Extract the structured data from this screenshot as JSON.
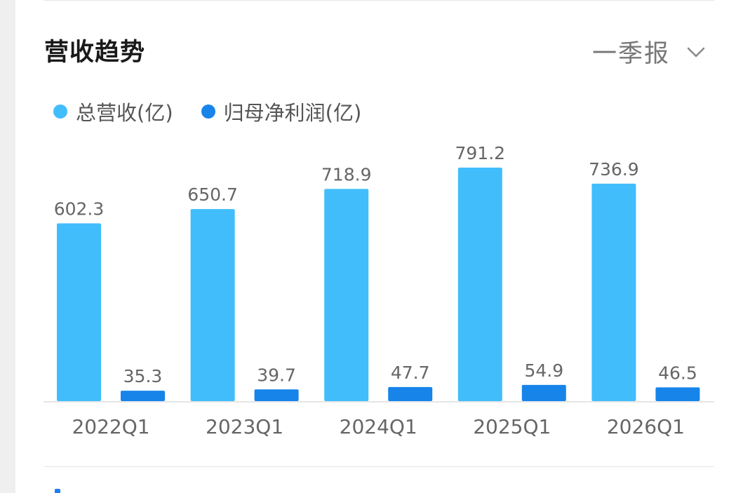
{
  "header": {
    "title": "营收趋势",
    "period": "一季报"
  },
  "colors": {
    "revenue": "#41bdfc",
    "profit": "#1784ea",
    "label": "#666666",
    "axis": "#dddddd"
  },
  "chart_data": {
    "type": "bar",
    "categories": [
      "2022Q1",
      "2023Q1",
      "2024Q1",
      "2025Q1",
      "2026Q1"
    ],
    "series": [
      {
        "name": "总营收(亿)",
        "values": [
          602.3,
          650.7,
          718.9,
          791.2,
          736.9
        ]
      },
      {
        "name": "归母净利润(亿)",
        "values": [
          35.3,
          39.7,
          47.7,
          54.9,
          46.5
        ]
      }
    ],
    "value_labels": [
      [
        "602.3",
        "650.7",
        "718.9",
        "791.2",
        "736.9"
      ],
      [
        "35.3",
        "39.7",
        "47.7",
        "54.9",
        "46.5"
      ]
    ],
    "title": "营收趋势",
    "ylim": [
      0,
      791.2
    ],
    "grid": false,
    "legend": "top-left"
  }
}
